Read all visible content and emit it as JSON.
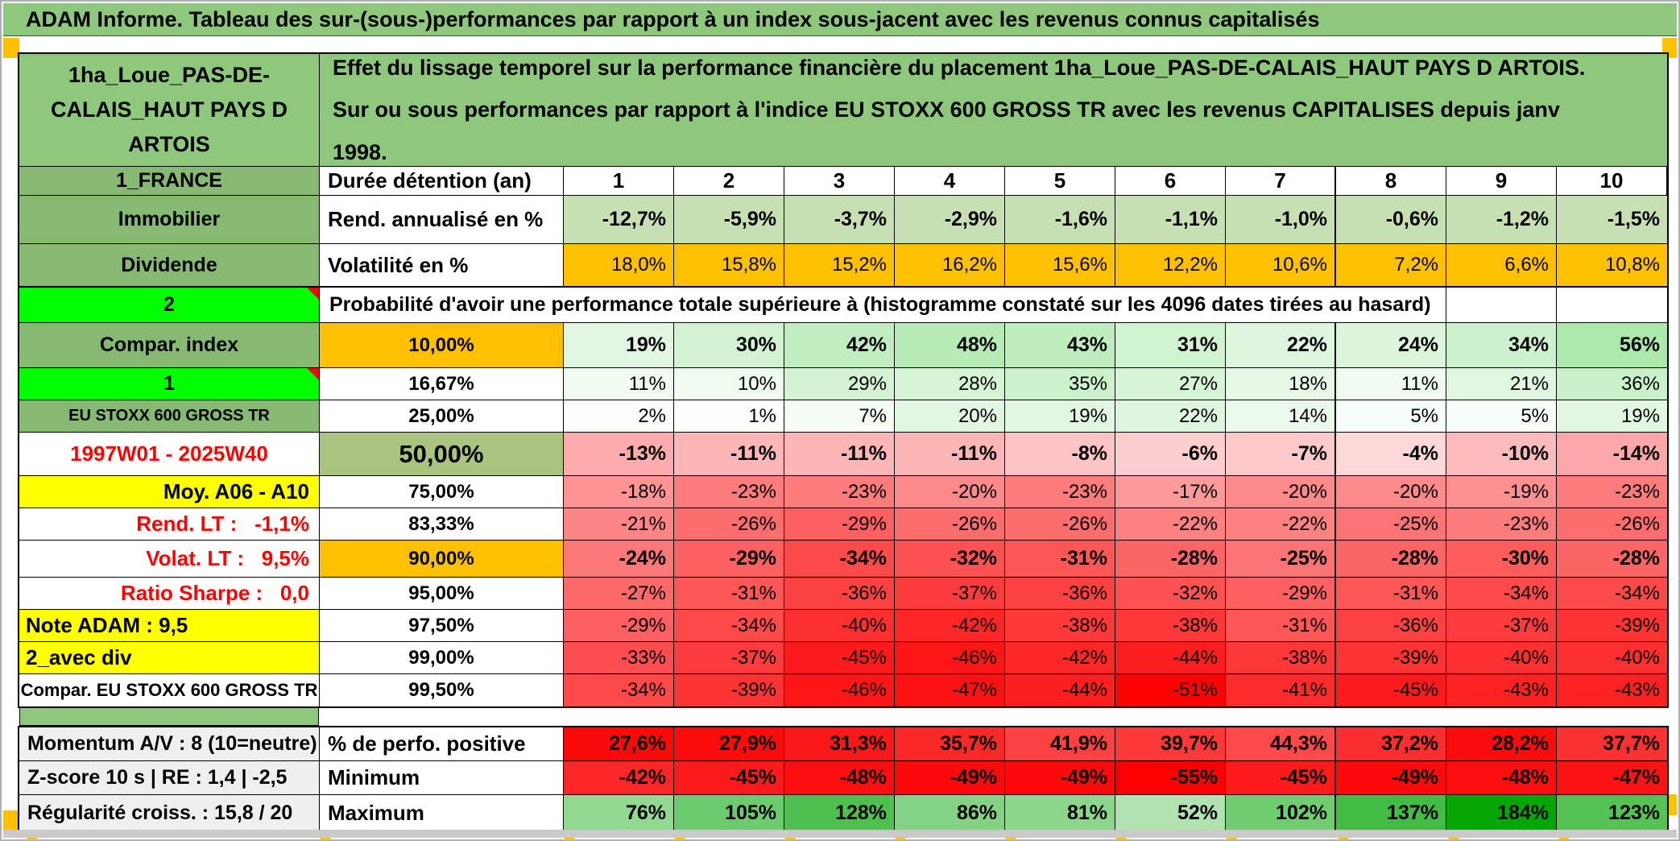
{
  "title": "ADAM Informe. Tableau des sur-(sous-)performances par rapport à un index sous-jacent avec les revenus connus capitalisés",
  "header": {
    "asset_name": "1ha_Loue_PAS-DE-CALAIS_HAUT PAYS D ARTOIS",
    "description": "Effet du lissage temporel sur la performance financière du placement 1ha_Loue_PAS-DE-CALAIS_HAUT PAYS D ARTOIS. Sur ou sous performances par rapport à l'indice EU STOXX 600 GROSS TR avec les revenus CAPITALISES depuis janv 1998."
  },
  "columns": {
    "label_a": "1_FRANCE",
    "label_b": "Durée détention (an)",
    "durations": [
      "1",
      "2",
      "3",
      "4",
      "5",
      "6",
      "7",
      "8",
      "9",
      "10"
    ]
  },
  "rows": [
    {
      "a": "Immobilier",
      "aClass": "a-green",
      "b": "Rend. annualisé en %",
      "bClass": "b-label",
      "fill": "lightgreen",
      "bold": true,
      "values": [
        "-12,7%",
        "-5,9%",
        "-3,7%",
        "-2,9%",
        "-1,6%",
        "-1,1%",
        "-1,0%",
        "-0,6%",
        "-1,2%",
        "-1,5%"
      ]
    },
    {
      "a": "Dividende",
      "aClass": "a-green",
      "b": "Volatilité en %",
      "bClass": "b-label",
      "fill": "orange",
      "bold": false,
      "values": [
        "18,0%",
        "15,8%",
        "15,2%",
        "16,2%",
        "15,6%",
        "12,2%",
        "10,6%",
        "7,2%",
        "6,6%",
        "10,8%"
      ]
    },
    {
      "type": "prob",
      "a": "2",
      "aClass": "a-bright",
      "marker": true,
      "text": "Probabilité d'avoir une performance totale supérieure à (histogramme constaté sur les 4096 dates tirées au hasard)"
    },
    {
      "a": "Compar. index",
      "aClass": "a-green",
      "b": "10,00%",
      "bClass": "b-orange",
      "fill": "greenscale",
      "bold": true,
      "values": [
        "19%",
        "30%",
        "42%",
        "48%",
        "43%",
        "31%",
        "22%",
        "24%",
        "34%",
        "56%"
      ]
    },
    {
      "a": "1",
      "aClass": "a-bright",
      "marker": true,
      "b": "16,67%",
      "bClass": "b-white",
      "fill": "greenscale",
      "bold": false,
      "values": [
        "11%",
        "10%",
        "29%",
        "28%",
        "35%",
        "27%",
        "18%",
        "11%",
        "21%",
        "36%"
      ]
    },
    {
      "a": "EU STOXX 600 GROSS TR",
      "aClass": "a-green-sm",
      "b": "25,00%",
      "bClass": "b-white",
      "fill": "greenscale",
      "bold": false,
      "values": [
        "2%",
        "1%",
        "7%",
        "20%",
        "19%",
        "22%",
        "14%",
        "5%",
        "5%",
        "19%"
      ]
    },
    {
      "a": "1997W01 - 2025W40",
      "aClass": "a-red-c",
      "b": "50,00%",
      "bClass": "b-olive",
      "fill": "redscale",
      "bold": true,
      "values": [
        "-13%",
        "-11%",
        "-11%",
        "-11%",
        "-8%",
        "-6%",
        "-7%",
        "-4%",
        "-10%",
        "-14%"
      ]
    },
    {
      "a": "Moy. A06 - A10",
      "aClass": "a-yellow-r",
      "b": "75,00%",
      "bClass": "b-white",
      "fill": "redscale",
      "bold": false,
      "values": [
        "-18%",
        "-23%",
        "-23%",
        "-20%",
        "-23%",
        "-17%",
        "-20%",
        "-20%",
        "-19%",
        "-23%"
      ]
    },
    {
      "a": "Rend. LT :   -1,1%",
      "aClass": "a-red-r",
      "b": "83,33%",
      "bClass": "b-white",
      "fill": "redscale",
      "bold": false,
      "values": [
        "-21%",
        "-26%",
        "-29%",
        "-26%",
        "-26%",
        "-22%",
        "-22%",
        "-25%",
        "-23%",
        "-26%"
      ]
    },
    {
      "a": "Volat. LT :   9,5%",
      "aClass": "a-red-r",
      "b": "90,00%",
      "bClass": "b-orange",
      "fill": "redscale",
      "bold": true,
      "values": [
        "-24%",
        "-29%",
        "-34%",
        "-32%",
        "-31%",
        "-28%",
        "-25%",
        "-28%",
        "-30%",
        "-28%"
      ]
    },
    {
      "a": "Ratio Sharpe :   0,0",
      "aClass": "a-red-r",
      "b": "95,00%",
      "bClass": "b-white",
      "fill": "redscale",
      "bold": false,
      "values": [
        "-27%",
        "-31%",
        "-36%",
        "-37%",
        "-36%",
        "-32%",
        "-29%",
        "-31%",
        "-34%",
        "-34%"
      ]
    },
    {
      "a": "Note ADAM : 9,5",
      "aClass": "a-yellow-l",
      "b": "97,50%",
      "bClass": "b-white",
      "fill": "redscale",
      "bold": false,
      "values": [
        "-29%",
        "-34%",
        "-40%",
        "-42%",
        "-38%",
        "-38%",
        "-31%",
        "-36%",
        "-37%",
        "-39%"
      ]
    },
    {
      "a": "2_avec div",
      "aClass": "a-yellow-l",
      "b": "99,00%",
      "bClass": "b-white",
      "fill": "redscale",
      "bold": false,
      "values": [
        "-33%",
        "-37%",
        "-45%",
        "-46%",
        "-42%",
        "-44%",
        "-38%",
        "-39%",
        "-40%",
        "-40%"
      ]
    },
    {
      "a": "Compar. EU STOXX 600 GROSS TR",
      "aClass": "a-white-c",
      "b": "99,50%",
      "bClass": "b-white",
      "fill": "redscale",
      "bold": false,
      "values": [
        "-34%",
        "-39%",
        "-46%",
        "-47%",
        "-44%",
        "-51%",
        "-41%",
        "-45%",
        "-43%",
        "-43%"
      ]
    }
  ],
  "bottom_rows": [
    {
      "a": "Momentum A/V : 8 (10=neutre)",
      "aClass": "a-gray",
      "b": "% de perfo. positive",
      "bClass": "b-bottom",
      "fill": "redflat",
      "bold": true,
      "values": [
        "27,6%",
        "27,9%",
        "31,3%",
        "35,7%",
        "41,9%",
        "39,7%",
        "44,3%",
        "37,2%",
        "28,2%",
        "37,7%"
      ]
    },
    {
      "a": "Z-score 10 s | RE : 1,4 | -2,5",
      "aClass": "a-gray",
      "b": "Minimum",
      "bClass": "b-bottom",
      "fill": "redscale",
      "bold": true,
      "values": [
        "-42%",
        "-45%",
        "-48%",
        "-49%",
        "-49%",
        "-55%",
        "-45%",
        "-49%",
        "-48%",
        "-47%"
      ]
    },
    {
      "a": "Régularité croiss. : 15,8 / 20",
      "aClass": "a-gray",
      "b": "Maximum",
      "bClass": "b-bottom",
      "fill": "maxgreen",
      "bold": true,
      "values": [
        "76%",
        "105%",
        "128%",
        "86%",
        "81%",
        "52%",
        "102%",
        "137%",
        "184%",
        "123%"
      ]
    }
  ],
  "colors": {
    "title_green": "#8DC87C",
    "label_green": "#86BA73",
    "bright_green": "#00FF00",
    "orange": "#FFC000",
    "yellow": "#FFFF00",
    "olive_green": "#A9C47E",
    "light_green": "#C6E0B4",
    "gray_label": "#EFEFEF",
    "red_text": "#FF0000",
    "marker_orange": "#FFC000"
  }
}
